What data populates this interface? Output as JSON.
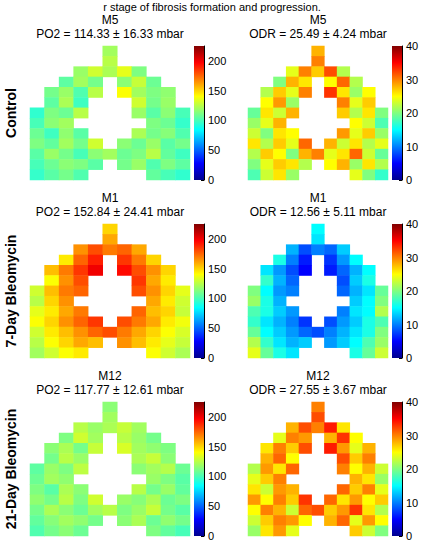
{
  "caption": "r stage of fibrosis formation and progression.",
  "chart_data": [
    {
      "type": "heatmap",
      "title": "M5",
      "subtitle": "PO2 = 114.33 ± 16.33 mbar",
      "ylabel": "Control",
      "tick_labels": false,
      "clim": [
        0,
        225
      ],
      "cticks": [
        0,
        50,
        100,
        150,
        200
      ],
      "cells": [
        [
          null,
          null,
          null,
          null,
          null,
          120,
          null,
          null,
          null,
          null,
          null
        ],
        [
          null,
          null,
          null,
          null,
          null,
          125,
          null,
          null,
          null,
          null,
          null
        ],
        [
          null,
          null,
          null,
          118,
          130,
          122,
          135,
          112,
          null,
          null,
          null
        ],
        [
          null,
          null,
          105,
          120,
          110,
          null,
          115,
          128,
          108,
          null,
          null
        ],
        [
          null,
          110,
          118,
          102,
          125,
          null,
          140,
          120,
          112,
          116,
          null
        ],
        [
          null,
          105,
          122,
          98,
          null,
          null,
          null,
          130,
          110,
          118,
          null
        ],
        [
          95,
          112,
          108,
          125,
          null,
          null,
          null,
          118,
          104,
          115,
          100
        ],
        [
          100,
          115,
          120,
          null,
          null,
          null,
          null,
          null,
          112,
          108,
          96
        ],
        [
          108,
          98,
          116,
          104,
          null,
          null,
          null,
          122,
          110,
          114,
          102
        ],
        [
          112,
          106,
          120,
          110,
          130,
          null,
          115,
          108,
          118,
          104,
          110
        ],
        [
          104,
          118,
          110,
          100,
          115,
          120,
          108,
          112,
          125,
          106,
          98
        ],
        [
          100,
          108,
          115,
          112,
          104,
          null,
          110,
          118,
          102,
          112,
          105
        ],
        [
          96,
          104,
          110,
          102,
          null,
          null,
          null,
          null,
          106,
          100,
          95
        ]
      ]
    },
    {
      "type": "heatmap",
      "title": "M5",
      "subtitle": "ODR = 25.49 ± 4.24 mbar",
      "tick_labels": false,
      "clim": [
        0,
        40
      ],
      "cticks": [
        0,
        10,
        20,
        30,
        40
      ],
      "cells": [
        [
          null,
          null,
          null,
          null,
          null,
          28,
          null,
          null,
          null,
          null,
          null
        ],
        [
          null,
          null,
          null,
          null,
          null,
          30,
          null,
          null,
          null,
          null,
          null
        ],
        [
          null,
          null,
          null,
          24,
          30,
          27,
          32,
          22,
          null,
          null,
          null
        ],
        [
          null,
          null,
          20,
          28,
          26,
          null,
          25,
          31,
          22,
          null,
          null
        ],
        [
          null,
          22,
          27,
          24,
          30,
          null,
          33,
          26,
          21,
          25,
          null
        ],
        [
          null,
          25,
          29,
          21,
          null,
          null,
          null,
          30,
          24,
          27,
          null
        ],
        [
          19,
          26,
          23,
          28,
          null,
          null,
          null,
          27,
          22,
          26,
          20
        ],
        [
          21,
          24,
          28,
          null,
          null,
          null,
          null,
          null,
          25,
          23,
          18
        ],
        [
          23,
          20,
          26,
          25,
          null,
          null,
          null,
          29,
          24,
          27,
          21
        ],
        [
          26,
          22,
          27,
          24,
          31,
          null,
          28,
          23,
          26,
          22,
          24
        ],
        [
          22,
          27,
          25,
          20,
          28,
          30,
          24,
          26,
          31,
          23,
          19
        ],
        [
          20,
          24,
          27,
          26,
          22,
          null,
          25,
          28,
          21,
          26,
          22
        ],
        [
          18,
          23,
          26,
          21,
          null,
          null,
          null,
          null,
          24,
          20,
          17
        ]
      ]
    },
    {
      "type": "heatmap",
      "title": "M1",
      "subtitle": "PO2 = 152.84 ± 24.41 mbar",
      "ylabel": "7-Day Bleomycin",
      "tick_labels": false,
      "clim": [
        0,
        225
      ],
      "cticks": [
        0,
        50,
        100,
        150,
        200
      ],
      "cells": [
        [
          null,
          null,
          null,
          null,
          null,
          150,
          null,
          null,
          null,
          null,
          null
        ],
        [
          null,
          null,
          null,
          null,
          null,
          160,
          null,
          null,
          null,
          null,
          null
        ],
        [
          null,
          null,
          null,
          165,
          180,
          170,
          175,
          160,
          null,
          null,
          null
        ],
        [
          null,
          null,
          145,
          175,
          190,
          null,
          185,
          170,
          150,
          null,
          null
        ],
        [
          null,
          155,
          170,
          185,
          200,
          null,
          195,
          180,
          165,
          150,
          null
        ],
        [
          null,
          140,
          165,
          180,
          null,
          null,
          null,
          185,
          160,
          145,
          null
        ],
        [
          130,
          155,
          170,
          175,
          null,
          null,
          null,
          180,
          165,
          150,
          135
        ],
        [
          125,
          150,
          165,
          null,
          null,
          null,
          null,
          null,
          160,
          145,
          130
        ],
        [
          135,
          145,
          160,
          170,
          null,
          null,
          null,
          175,
          155,
          150,
          128
        ],
        [
          140,
          150,
          165,
          175,
          185,
          null,
          180,
          170,
          160,
          145,
          138
        ],
        [
          130,
          145,
          155,
          165,
          175,
          180,
          170,
          160,
          150,
          140,
          132
        ],
        [
          125,
          140,
          150,
          160,
          155,
          null,
          165,
          155,
          145,
          135,
          128
        ],
        [
          120,
          130,
          140,
          145,
          null,
          null,
          null,
          null,
          140,
          130,
          122
        ]
      ]
    },
    {
      "type": "heatmap",
      "title": "M1",
      "subtitle": "ODR = 12.56 ± 5.11 mbar",
      "tick_labels": false,
      "clim": [
        0,
        40
      ],
      "cticks": [
        0,
        10,
        20,
        30,
        40
      ],
      "cells": [
        [
          null,
          null,
          null,
          null,
          null,
          15,
          null,
          null,
          null,
          null,
          null
        ],
        [
          null,
          null,
          null,
          null,
          null,
          14,
          null,
          null,
          null,
          null,
          null
        ],
        [
          null,
          null,
          null,
          12,
          8,
          10,
          9,
          13,
          null,
          null,
          null
        ],
        [
          null,
          null,
          16,
          10,
          6,
          null,
          7,
          11,
          15,
          null,
          null
        ],
        [
          null,
          14,
          11,
          8,
          5,
          null,
          6,
          9,
          12,
          15,
          null
        ],
        [
          null,
          17,
          12,
          9,
          null,
          null,
          null,
          8,
          13,
          16,
          null
        ],
        [
          20,
          15,
          11,
          10,
          null,
          null,
          null,
          9,
          12,
          14,
          19
        ],
        [
          21,
          16,
          12,
          null,
          null,
          null,
          null,
          null,
          13,
          15,
          20
        ],
        [
          18,
          16,
          13,
          11,
          null,
          null,
          null,
          10,
          14,
          15,
          22
        ],
        [
          17,
          14,
          12,
          10,
          7,
          null,
          8,
          11,
          13,
          16,
          18
        ],
        [
          19,
          15,
          13,
          11,
          9,
          8,
          10,
          12,
          14,
          16,
          20
        ],
        [
          22,
          17,
          14,
          12,
          13,
          null,
          11,
          13,
          15,
          18,
          21
        ],
        [
          24,
          19,
          16,
          14,
          null,
          null,
          null,
          null,
          16,
          19,
          23
        ]
      ]
    },
    {
      "type": "heatmap",
      "title": "M12",
      "subtitle": "PO2 = 117.77 ± 12.61 mbar",
      "ylabel": "21-Day Bleomycin",
      "tick_labels": false,
      "clim": [
        0,
        225
      ],
      "cticks": [
        0,
        50,
        100,
        150,
        200
      ],
      "cells": [
        [
          null,
          null,
          null,
          null,
          null,
          115,
          null,
          null,
          null,
          null,
          null
        ],
        [
          null,
          null,
          null,
          null,
          null,
          120,
          null,
          null,
          null,
          null,
          null
        ],
        [
          null,
          null,
          null,
          125,
          118,
          122,
          128,
          120,
          null,
          null,
          null
        ],
        [
          null,
          null,
          112,
          130,
          120,
          null,
          125,
          118,
          110,
          null,
          null
        ],
        [
          null,
          115,
          122,
          110,
          128,
          null,
          132,
          120,
          116,
          112,
          null
        ],
        [
          null,
          110,
          125,
          118,
          null,
          null,
          null,
          122,
          128,
          115,
          null
        ],
        [
          105,
          118,
          112,
          126,
          null,
          null,
          null,
          115,
          120,
          124,
          108
        ],
        [
          108,
          120,
          116,
          null,
          null,
          null,
          null,
          null,
          118,
          112,
          104
        ],
        [
          112,
          104,
          122,
          115,
          null,
          null,
          null,
          125,
          110,
          118,
          106
        ],
        [
          116,
          110,
          125,
          112,
          130,
          null,
          118,
          114,
          122,
          108,
          112
        ],
        [
          110,
          122,
          115,
          108,
          120,
          125,
          112,
          118,
          128,
          110,
          104
        ],
        [
          106,
          114,
          120,
          116,
          110,
          null,
          115,
          122,
          108,
          116,
          110
        ],
        [
          102,
          110,
          115,
          108,
          null,
          null,
          null,
          null,
          112,
          106,
          100
        ]
      ]
    },
    {
      "type": "heatmap",
      "title": "M12",
      "subtitle": "ODR = 27.55 ± 3.67 mbar",
      "tick_labels": false,
      "clim": [
        0,
        40
      ],
      "cticks": [
        0,
        10,
        20,
        30,
        40
      ],
      "cells": [
        [
          null,
          null,
          null,
          null,
          null,
          30,
          null,
          null,
          null,
          null,
          null
        ],
        [
          null,
          null,
          null,
          null,
          null,
          32,
          null,
          null,
          null,
          null,
          null
        ],
        [
          null,
          null,
          null,
          28,
          32,
          30,
          34,
          26,
          null,
          null,
          null
        ],
        [
          null,
          null,
          24,
          30,
          29,
          null,
          28,
          33,
          25,
          null,
          null
        ],
        [
          null,
          26,
          30,
          27,
          32,
          null,
          34,
          29,
          24,
          28,
          null
        ],
        [
          null,
          28,
          31,
          25,
          null,
          null,
          null,
          32,
          27,
          30,
          null
        ],
        [
          22,
          29,
          26,
          31,
          null,
          null,
          null,
          30,
          25,
          28,
          23
        ],
        [
          24,
          27,
          30,
          null,
          null,
          null,
          null,
          null,
          28,
          26,
          21
        ],
        [
          26,
          23,
          29,
          28,
          null,
          null,
          null,
          31,
          27,
          30,
          24
        ],
        [
          29,
          25,
          30,
          27,
          33,
          null,
          31,
          26,
          29,
          25,
          27
        ],
        [
          25,
          30,
          28,
          23,
          31,
          32,
          27,
          29,
          33,
          26,
          22
        ],
        [
          23,
          27,
          30,
          29,
          25,
          null,
          28,
          31,
          24,
          29,
          25
        ],
        [
          21,
          26,
          29,
          24,
          null,
          null,
          null,
          null,
          27,
          23,
          20
        ]
      ]
    }
  ]
}
